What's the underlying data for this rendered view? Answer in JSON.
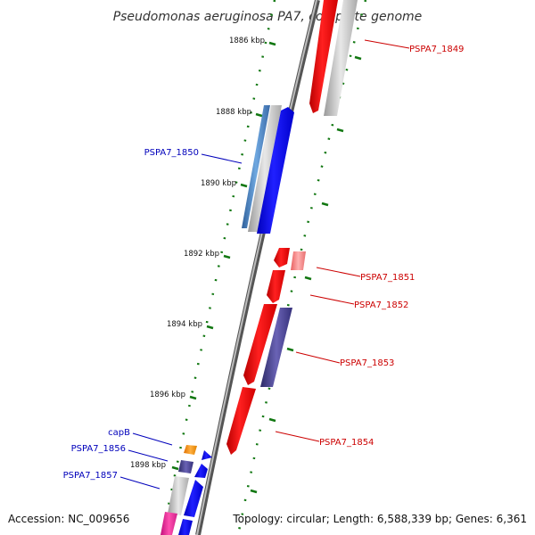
{
  "title": "Pseudomonas aeruginosa PA7, complete genome",
  "footer": {
    "accession": "Accession: NC_009656",
    "topology": "Topology: circular; Length: 6,588,339 bp; Genes: 6,361"
  },
  "ticks": [
    "1886 kbp",
    "1888 kbp",
    "1890 kbp",
    "1892 kbp",
    "1894 kbp",
    "1896 kbp",
    "1898 kbp"
  ],
  "genes": {
    "pspa7_1849": "PSPA7_1849",
    "pspa7_1850": "PSPA7_1850",
    "pspa7_1851": "PSPA7_1851",
    "pspa7_1852": "PSPA7_1852",
    "pspa7_1853": "PSPA7_1853",
    "pspa7_1854": "PSPA7_1854",
    "capb": "capB",
    "pspa7_1856": "PSPA7_1856",
    "pspa7_1857": "PSPA7_1857"
  },
  "colors": {
    "forward_label": "#cc0000",
    "reverse_label": "#0000bb",
    "tick": "#117711",
    "backbone": "#808080"
  }
}
